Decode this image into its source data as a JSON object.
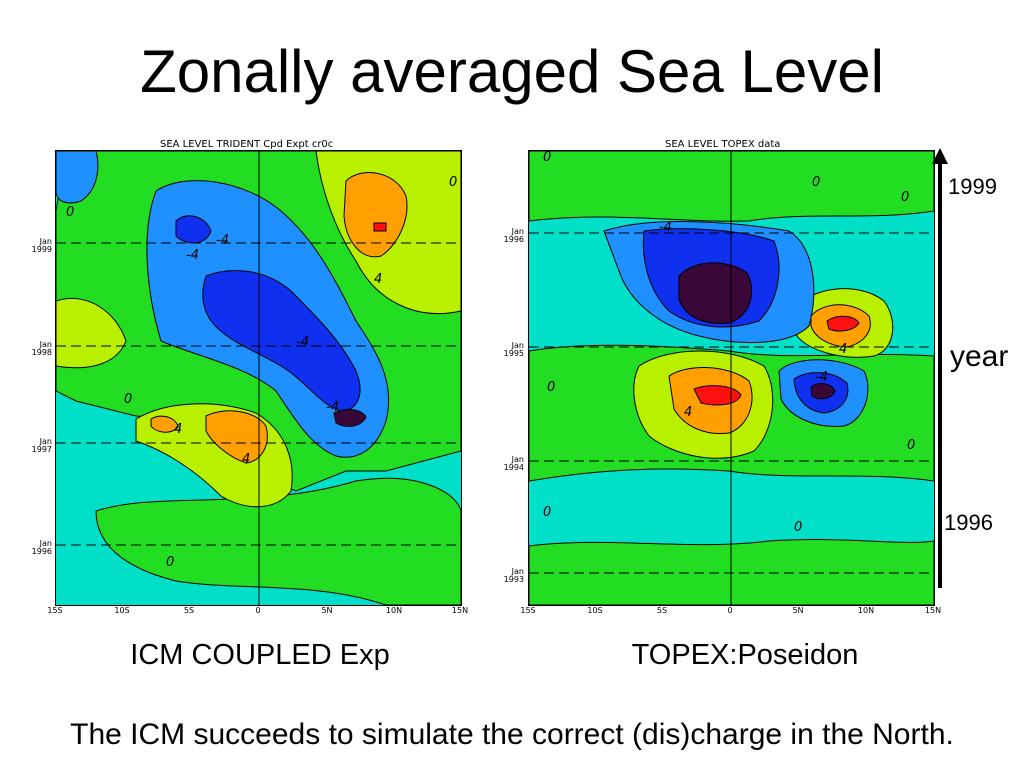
{
  "slide": {
    "title": "Zonally averaged Sea Level",
    "footer": "The ICM succeeds to simulate the correct (dis)charge in the North."
  },
  "left_panel": {
    "heading": "SEA LEVEL TRIDENT Cpd Expt cr0c",
    "caption": "ICM COUPLED Exp",
    "y_labels": [
      "Jan 1999",
      "Jan 1998",
      "Jan 1997",
      "Jan 1996"
    ],
    "x_labels": [
      "15S",
      "10S",
      "5S",
      "0",
      "5N",
      "10N",
      "15N"
    ],
    "contour_labels": [
      "0",
      "0",
      "0",
      "0",
      "4",
      "4",
      "4",
      "-4",
      "-4",
      "-4",
      "-4"
    ]
  },
  "right_panel": {
    "heading": "SEA LEVEL TOPEX data",
    "caption": "TOPEX:Poseidon",
    "y_labels": [
      "Jan 1996",
      "Jan 1995",
      "Jan 1994",
      "Jan 1993"
    ],
    "x_labels": [
      "15S",
      "10S",
      "5S",
      "0",
      "5N",
      "10N",
      "15N"
    ],
    "contour_labels": [
      "0",
      "0",
      "0",
      "0",
      "0",
      "0",
      "0",
      "4",
      "4",
      "-4",
      "-4"
    ]
  },
  "annotation": {
    "top": "1999",
    "middle": "year",
    "bottom": "1996"
  },
  "colors": {
    "cyan": "#00e0c8",
    "green": "#22dd22",
    "yellow_green": "#b8f000",
    "light_blue": "#1e90ff",
    "blue": "#1030f0",
    "dark_blue": "#2a00b0",
    "darkest": "#3a0838",
    "orange": "#ffa000",
    "red": "#ff1010"
  }
}
